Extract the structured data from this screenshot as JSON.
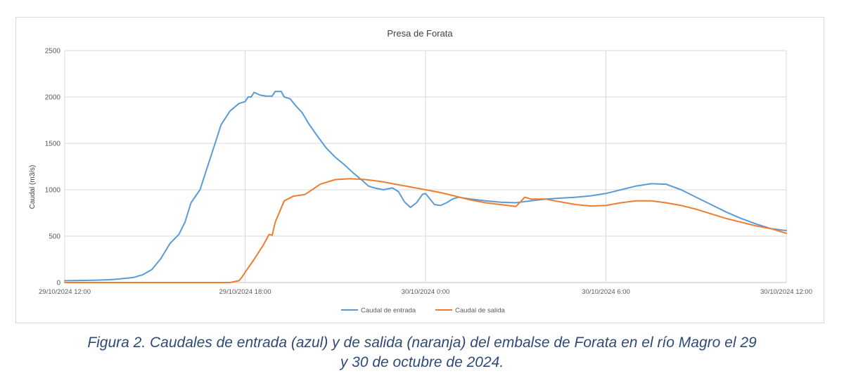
{
  "chart_data": {
    "type": "line",
    "title": "Presa de Forata",
    "ylabel": "Caudal (m3/s)",
    "xlabel": "",
    "ylim": [
      0,
      2500
    ],
    "yticks": [
      "0",
      "500",
      "1000",
      "1500",
      "2000",
      "2500"
    ],
    "xlim_hours": [
      0,
      24
    ],
    "xticks": [
      "29/10/2024 12:00",
      "29/10/2024 18:00",
      "30/10/2024 0:00",
      "30/10/2024 6:00",
      "30/10/2024 12:00"
    ],
    "x_unit": "hours since 29/10/2024 12:00",
    "grid": true,
    "legend_position": "bottom",
    "series": [
      {
        "name": "Caudal de entrada",
        "color": "#5b9bd5",
        "x": [
          0,
          0.5,
          1,
          1.5,
          1.8,
          2,
          2.3,
          2.6,
          2.9,
          3.2,
          3.5,
          3.8,
          4.0,
          4.2,
          4.5,
          4.8,
          5.0,
          5.2,
          5.5,
          5.8,
          6.0,
          6.1,
          6.2,
          6.3,
          6.5,
          6.7,
          6.9,
          7.0,
          7.2,
          7.3,
          7.5,
          7.7,
          7.9,
          8.1,
          8.4,
          8.7,
          9.0,
          9.3,
          9.6,
          9.9,
          10.1,
          10.3,
          10.6,
          10.9,
          11.1,
          11.3,
          11.5,
          11.7,
          11.9,
          12.0,
          12.1,
          12.3,
          12.5,
          12.7,
          12.9,
          13.1,
          13.5,
          14.0,
          14.5,
          15.0,
          15.5,
          16.0,
          16.5,
          17.0,
          17.5,
          18.0,
          18.5,
          19.0,
          19.5,
          20.0,
          20.5,
          21.0,
          21.5,
          22.0,
          22.5,
          23.0,
          23.5,
          24.0
        ],
        "y": [
          20,
          22,
          25,
          30,
          38,
          45,
          55,
          85,
          140,
          260,
          420,
          520,
          650,
          860,
          1000,
          1300,
          1500,
          1700,
          1850,
          1930,
          1950,
          2000,
          2000,
          2050,
          2020,
          2010,
          2010,
          2060,
          2060,
          2000,
          1980,
          1900,
          1830,
          1720,
          1580,
          1450,
          1350,
          1270,
          1180,
          1100,
          1040,
          1020,
          1000,
          1020,
          980,
          870,
          810,
          860,
          950,
          960,
          920,
          840,
          830,
          860,
          900,
          920,
          900,
          880,
          865,
          860,
          880,
          900,
          910,
          920,
          935,
          960,
          1000,
          1040,
          1065,
          1060,
          1000,
          920,
          840,
          760,
          690,
          630,
          580,
          560
        ]
      },
      {
        "name": "Caudal de salida",
        "color": "#ed7d31",
        "x": [
          0,
          2,
          4,
          5.5,
          5.8,
          5.9,
          6.0,
          6.3,
          6.6,
          6.8,
          6.9,
          7.0,
          7.3,
          7.6,
          8.0,
          8.5,
          9.0,
          9.5,
          10.0,
          10.5,
          11.0,
          11.5,
          12.0,
          12.5,
          13.0,
          13.5,
          14.0,
          14.5,
          15.0,
          15.1,
          15.3,
          15.5,
          15.7,
          16.0,
          16.3,
          17.0,
          17.5,
          18.0,
          18.5,
          19.0,
          19.5,
          20.0,
          20.5,
          21.0,
          21.5,
          22.0,
          22.5,
          23.0,
          23.5,
          24.0
        ],
        "y": [
          0,
          0,
          0,
          0,
          20,
          60,
          110,
          250,
          400,
          520,
          510,
          650,
          880,
          930,
          950,
          1060,
          1110,
          1120,
          1110,
          1090,
          1060,
          1030,
          1000,
          970,
          930,
          890,
          860,
          840,
          820,
          850,
          920,
          900,
          900,
          900,
          880,
          840,
          825,
          830,
          860,
          880,
          880,
          860,
          830,
          790,
          740,
          690,
          650,
          610,
          580,
          530
        ]
      }
    ]
  },
  "caption": {
    "line1": "Figura 2. Caudales de entrada (azul) y de salida (naranja) del embalse de Forata en el río Magro el 29",
    "line2": "y 30 de octubre de 2024."
  }
}
